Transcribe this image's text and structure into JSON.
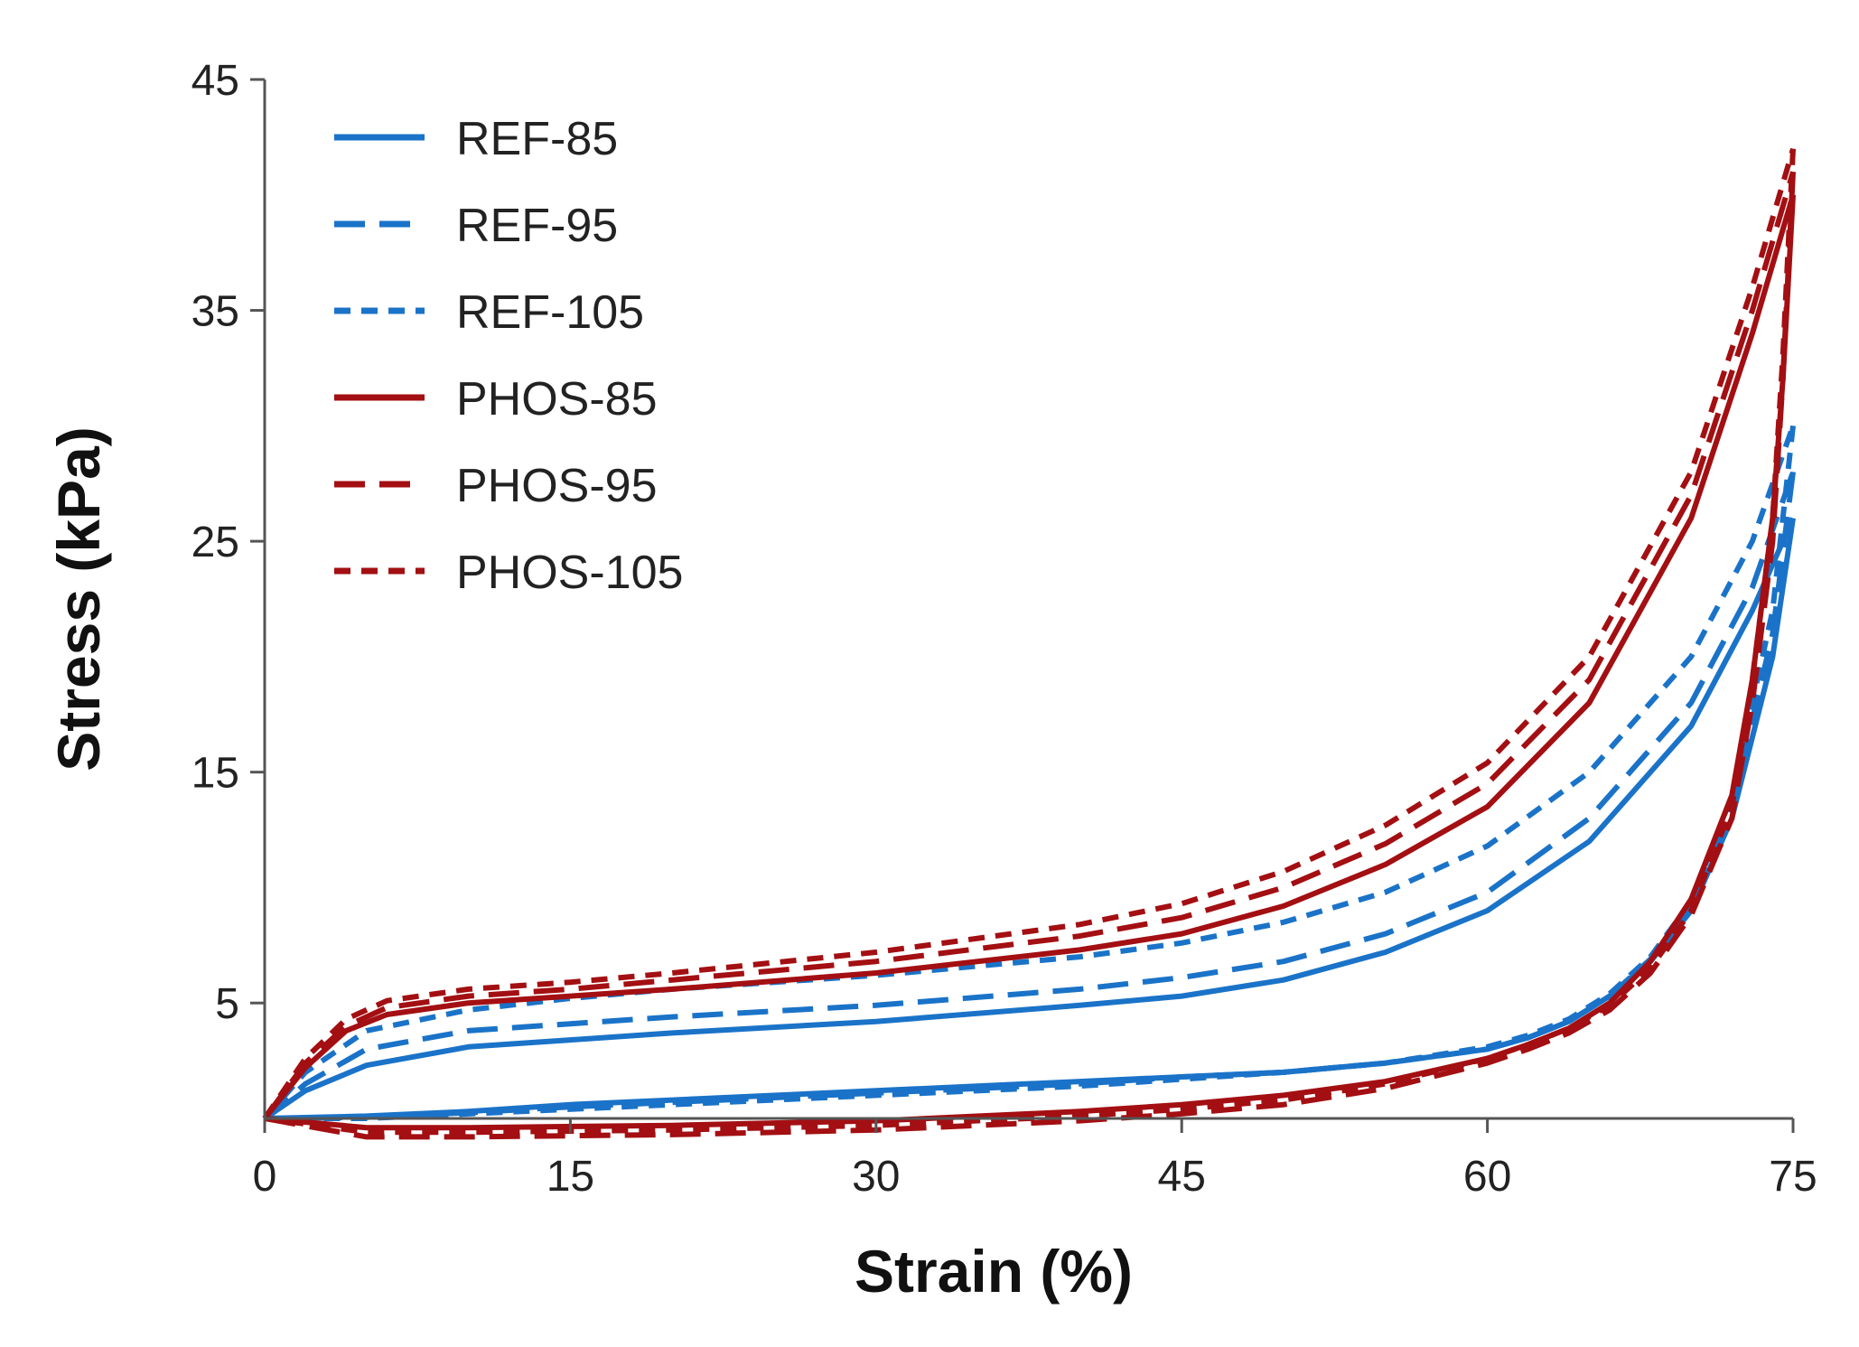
{
  "chart_data": {
    "type": "line",
    "title": "",
    "xlabel": "Strain (%)",
    "ylabel": "Stress (kPa)",
    "xlim": [
      0,
      75
    ],
    "ylim": [
      0,
      45
    ],
    "x_ticks": [
      0,
      15,
      30,
      45,
      60,
      75
    ],
    "y_ticks": [
      5,
      15,
      25,
      35,
      45
    ],
    "grid": false,
    "legend_position": "top-left",
    "colors": {
      "REF": "#1a73c8",
      "PHOS": "#a30f12"
    },
    "series": [
      {
        "name": "REF-85",
        "color": "#1a73c8",
        "dash": "solid",
        "loading": {
          "x": [
            0,
            2,
            5,
            10,
            15,
            20,
            30,
            40,
            45,
            50,
            55,
            60,
            65,
            70,
            73,
            75
          ],
          "y": [
            0,
            1.2,
            2.3,
            3.1,
            3.4,
            3.7,
            4.2,
            4.9,
            5.3,
            6.0,
            7.2,
            9.0,
            12.0,
            17.0,
            22.0,
            26.0
          ]
        },
        "unloading": {
          "x": [
            75,
            74,
            72,
            70,
            68,
            66,
            64,
            62,
            60,
            55,
            50,
            45,
            40,
            30,
            20,
            15,
            10,
            5,
            0
          ],
          "y": [
            26.0,
            20.0,
            13.0,
            9.0,
            6.8,
            5.3,
            4.2,
            3.5,
            3.0,
            2.4,
            2.0,
            1.8,
            1.6,
            1.2,
            0.8,
            0.6,
            0.3,
            0.1,
            0
          ]
        }
      },
      {
        "name": "REF-95",
        "color": "#1a73c8",
        "dash": "long",
        "loading": {
          "x": [
            0,
            2,
            5,
            10,
            15,
            20,
            30,
            40,
            45,
            50,
            55,
            60,
            65,
            70,
            73,
            75
          ],
          "y": [
            0,
            1.5,
            3.0,
            3.8,
            4.1,
            4.4,
            4.9,
            5.6,
            6.1,
            6.8,
            8.0,
            9.8,
            13.0,
            18.0,
            23.0,
            28.0
          ]
        },
        "unloading": {
          "x": [
            75,
            74,
            72,
            70,
            68,
            66,
            64,
            62,
            60,
            55,
            50,
            45,
            40,
            30,
            20,
            15,
            10,
            5,
            0
          ],
          "y": [
            28.0,
            21.0,
            13.5,
            9.2,
            6.9,
            5.3,
            4.2,
            3.5,
            3.0,
            2.4,
            2.0,
            1.8,
            1.5,
            1.1,
            0.7,
            0.5,
            0.25,
            0.05,
            0
          ]
        }
      },
      {
        "name": "REF-105",
        "color": "#1a73c8",
        "dash": "short",
        "loading": {
          "x": [
            0,
            2,
            5,
            10,
            15,
            20,
            30,
            40,
            45,
            50,
            55,
            60,
            65,
            70,
            73,
            75
          ],
          "y": [
            0,
            2.0,
            3.8,
            4.7,
            5.2,
            5.6,
            6.2,
            7.0,
            7.6,
            8.5,
            9.8,
            11.8,
            15.0,
            20.0,
            25.0,
            30.0
          ]
        },
        "unloading": {
          "x": [
            75,
            74,
            72,
            70,
            68,
            66,
            64,
            62,
            60,
            55,
            50,
            45,
            40,
            30,
            20,
            15,
            10,
            5,
            0
          ],
          "y": [
            30.0,
            22.0,
            14.0,
            9.4,
            7.0,
            5.4,
            4.3,
            3.6,
            3.1,
            2.4,
            2.0,
            1.7,
            1.4,
            1.0,
            0.6,
            0.4,
            0.2,
            0,
            0
          ]
        }
      },
      {
        "name": "PHOS-85",
        "color": "#a30f12",
        "dash": "solid",
        "loading": {
          "x": [
            0,
            2,
            4,
            6,
            10,
            15,
            20,
            30,
            40,
            45,
            50,
            55,
            60,
            65,
            70,
            73,
            75
          ],
          "y": [
            0,
            2.2,
            3.8,
            4.5,
            5.0,
            5.3,
            5.6,
            6.3,
            7.3,
            8.0,
            9.2,
            11.0,
            13.5,
            18.0,
            26.0,
            34.0,
            40.0
          ]
        },
        "unloading": {
          "x": [
            75,
            74.5,
            74,
            73,
            72,
            70,
            68,
            66,
            64,
            62,
            60,
            55,
            50,
            45,
            40,
            30,
            20,
            10,
            5,
            0
          ],
          "y": [
            40.0,
            32.0,
            26.0,
            19.0,
            14.0,
            9.5,
            6.8,
            5.0,
            3.9,
            3.2,
            2.6,
            1.6,
            1.0,
            0.6,
            0.3,
            -0.1,
            -0.3,
            -0.4,
            -0.4,
            0
          ]
        }
      },
      {
        "name": "PHOS-95",
        "color": "#a30f12",
        "dash": "long",
        "loading": {
          "x": [
            0,
            2,
            4,
            6,
            10,
            15,
            20,
            30,
            40,
            45,
            50,
            55,
            60,
            65,
            70,
            73,
            75
          ],
          "y": [
            0,
            2.4,
            4.0,
            4.8,
            5.3,
            5.6,
            6.0,
            6.8,
            7.9,
            8.7,
            10.0,
            11.9,
            14.5,
            19.0,
            27.0,
            35.0,
            41.0
          ]
        },
        "unloading": {
          "x": [
            75,
            74.5,
            74,
            73,
            72,
            70,
            68,
            66,
            64,
            62,
            60,
            55,
            50,
            45,
            40,
            30,
            20,
            10,
            5,
            0
          ],
          "y": [
            41.0,
            32.0,
            25.0,
            18.0,
            13.0,
            8.8,
            6.3,
            4.7,
            3.7,
            3.0,
            2.4,
            1.3,
            0.6,
            0.2,
            -0.1,
            -0.5,
            -0.7,
            -0.8,
            -0.8,
            0
          ]
        }
      },
      {
        "name": "PHOS-105",
        "color": "#a30f12",
        "dash": "short",
        "loading": {
          "x": [
            0,
            2,
            4,
            6,
            10,
            15,
            20,
            30,
            40,
            45,
            50,
            55,
            60,
            65,
            70,
            73,
            75
          ],
          "y": [
            0,
            2.6,
            4.3,
            5.1,
            5.6,
            5.9,
            6.3,
            7.2,
            8.4,
            9.3,
            10.7,
            12.7,
            15.4,
            20.0,
            28.0,
            36.0,
            42.0
          ]
        },
        "unloading": {
          "x": [
            75,
            74.5,
            74,
            73,
            72,
            70,
            68,
            66,
            64,
            62,
            60,
            55,
            50,
            45,
            40,
            30,
            20,
            10,
            5,
            0
          ],
          "y": [
            42.0,
            33.0,
            26.0,
            19.0,
            13.5,
            9.0,
            6.5,
            4.9,
            3.9,
            3.2,
            2.6,
            1.5,
            0.8,
            0.4,
            0.1,
            -0.3,
            -0.5,
            -0.6,
            -0.6,
            0
          ]
        }
      }
    ]
  }
}
